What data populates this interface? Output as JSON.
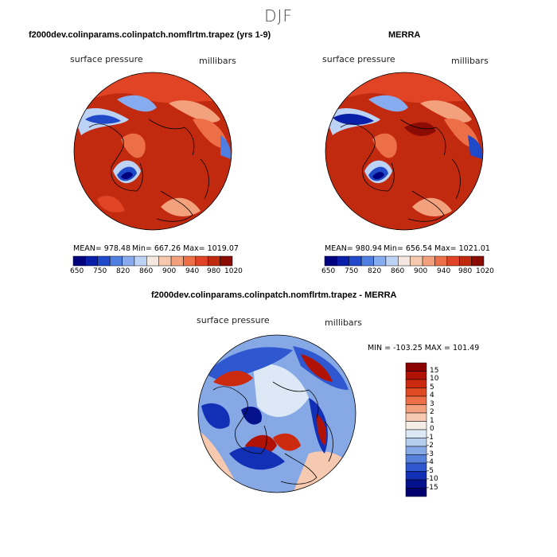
{
  "page": {
    "season": "DJF"
  },
  "panels": [
    {
      "title": "f2000dev.colinparams.colinpatch.nomflrtm.trapez (yrs 1-9)",
      "variable": "surface pressure",
      "units": "millibars",
      "stats": {
        "mean": "MEAN= 978.48",
        "min": "Min= 667.26",
        "max": "Max= 1019.07"
      }
    },
    {
      "title": "MERRA",
      "variable": "surface pressure",
      "units": "millibars",
      "stats": {
        "mean": "MEAN= 980.94",
        "min": "Min= 656.54",
        "max": "Max= 1021.01"
      }
    }
  ],
  "abs_colorbar": {
    "colors": [
      "#00007f",
      "#0a1fa8",
      "#1f49c9",
      "#4f7ee0",
      "#86abee",
      "#bcd3f6",
      "#f4e8e0",
      "#f6c8ae",
      "#f3a07d",
      "#ec6f47",
      "#e04424",
      "#c22a10",
      "#8b0c04"
    ],
    "tick_labels": [
      "650",
      "750",
      "820",
      "860",
      "900",
      "940",
      "980",
      "1020"
    ]
  },
  "diff_panel": {
    "title": "f2000dev.colinparams.colinpatch.nomflrtm.trapez - MERRA",
    "variable": "surface pressure",
    "units": "millibars",
    "minmax": "MIN = -103.25 MAX = 101.49",
    "colorbar": {
      "labels": [
        "15",
        "10",
        "5",
        "4",
        "3",
        "2",
        "1",
        "0",
        "-1",
        "-2",
        "-3",
        "-4",
        "-5",
        "-10",
        "-15"
      ],
      "colors": [
        "#8b0000",
        "#b01205",
        "#cc2a0e",
        "#e04a22",
        "#ec6f47",
        "#f3a07d",
        "#f7c9b0",
        "#f5eee8",
        "#dde8f6",
        "#b7cdee",
        "#86a9e6",
        "#5782dc",
        "#2f57cf",
        "#1230b5",
        "#05128e",
        "#000070"
      ]
    }
  },
  "colors": {
    "land_outline": "#000000",
    "background": "#ffffff"
  }
}
